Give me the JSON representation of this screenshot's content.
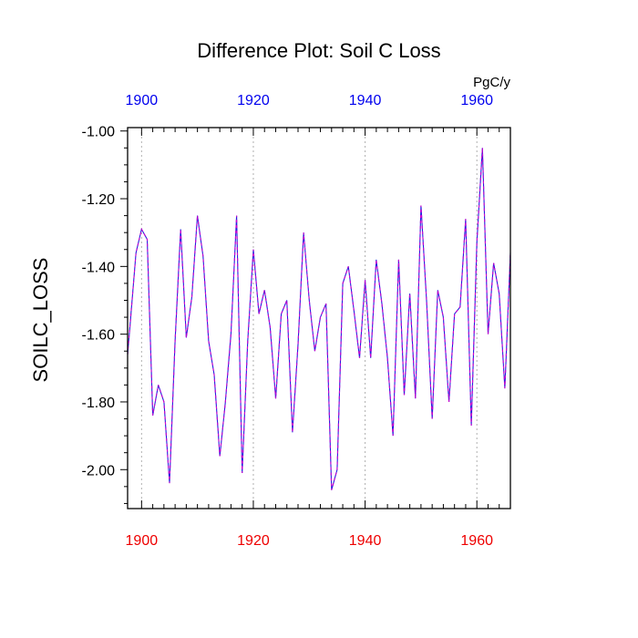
{
  "chart_data": {
    "type": "line",
    "title": "Difference Plot: Soil C Loss",
    "ylabel": "SOILC_LOSS",
    "units_label": "PgC/y",
    "xlim": [
      1897.5,
      1966
    ],
    "ylim": [
      -2.115,
      -0.99
    ],
    "y_ticks": [
      -1.0,
      -1.2,
      -1.4,
      -1.6,
      -1.8,
      -2.0
    ],
    "y_tick_labels": [
      "-1.00",
      "-1.20",
      "-1.40",
      "-1.60",
      "-1.80",
      "-2.00"
    ],
    "x_ticks": [
      1900,
      1920,
      1940,
      1960
    ],
    "x_tick_labels_bottom": [
      "1900",
      "1920",
      "1940",
      "1960"
    ],
    "x_tick_labels_top": [
      "1900",
      "1920",
      "1940",
      "1960"
    ],
    "vertical_grid": true,
    "colors": {
      "line_primary": "#2222dd",
      "line_overlay": "#cc00cc",
      "bottom_labels": "#ee0000",
      "top_labels": "#0000ee",
      "grid": "#b0b0b0"
    },
    "series": [
      {
        "name": "SOILC_LOSS",
        "x": [
          1897.5,
          1898,
          1899,
          1900,
          1901,
          1902,
          1903,
          1904,
          1905,
          1906,
          1907,
          1908,
          1909,
          1910,
          1911,
          1912,
          1913,
          1914,
          1915,
          1916,
          1917,
          1918,
          1919,
          1920,
          1921,
          1922,
          1923,
          1924,
          1925,
          1926,
          1927,
          1928,
          1929,
          1930,
          1931,
          1932,
          1933,
          1934,
          1935,
          1936,
          1937,
          1938,
          1939,
          1940,
          1941,
          1942,
          1943,
          1944,
          1945,
          1946,
          1947,
          1948,
          1949,
          1950,
          1951,
          1952,
          1953,
          1954,
          1955,
          1956,
          1957,
          1958,
          1959,
          1960,
          1961,
          1962,
          1963,
          1964,
          1965,
          1966
        ],
        "y": [
          -1.66,
          -1.56,
          -1.36,
          -1.29,
          -1.32,
          -1.84,
          -1.75,
          -1.8,
          -2.04,
          -1.62,
          -1.29,
          -1.61,
          -1.49,
          -1.25,
          -1.37,
          -1.62,
          -1.72,
          -1.96,
          -1.8,
          -1.6,
          -1.25,
          -2.01,
          -1.62,
          -1.35,
          -1.54,
          -1.47,
          -1.58,
          -1.79,
          -1.54,
          -1.5,
          -1.89,
          -1.63,
          -1.3,
          -1.5,
          -1.65,
          -1.55,
          -1.51,
          -2.06,
          -2.0,
          -1.45,
          -1.4,
          -1.53,
          -1.67,
          -1.44,
          -1.67,
          -1.38,
          -1.51,
          -1.67,
          -1.9,
          -1.38,
          -1.78,
          -1.48,
          -1.79,
          -1.22,
          -1.5,
          -1.85,
          -1.47,
          -1.55,
          -1.8,
          -1.54,
          -1.52,
          -1.26,
          -1.87,
          -1.33,
          -1.05,
          -1.6,
          -1.39,
          -1.48,
          -1.76,
          -1.36
        ]
      }
    ]
  }
}
